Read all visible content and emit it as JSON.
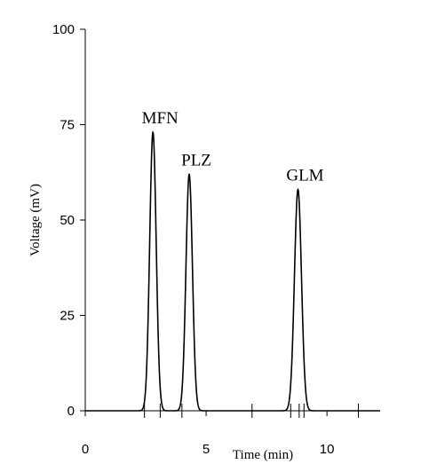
{
  "chart_data": {
    "type": "line",
    "xlabel": "Time (min)",
    "ylabel": "Voltage (mV)",
    "xlim": [
      0,
      12.2
    ],
    "ylim": [
      0,
      100
    ],
    "x_ticks": [
      0,
      5,
      10
    ],
    "y_ticks": [
      0,
      25,
      50,
      75,
      100
    ],
    "grid": false,
    "baseline": 0,
    "series": [
      {
        "name": "",
        "color": "#000000",
        "peaks": [
          {
            "label": "MFN",
            "rt": 2.8,
            "height": 73,
            "width": 0.35
          },
          {
            "label": "PLZ",
            "rt": 4.3,
            "height": 62,
            "width": 0.35
          },
          {
            "label": "GLM",
            "rt": 8.8,
            "height": 58,
            "width": 0.38
          }
        ]
      }
    ],
    "baseline_markers": [
      2.45,
      3.1,
      4.0,
      6.9,
      8.5,
      8.85,
      9.05,
      11.3
    ]
  }
}
